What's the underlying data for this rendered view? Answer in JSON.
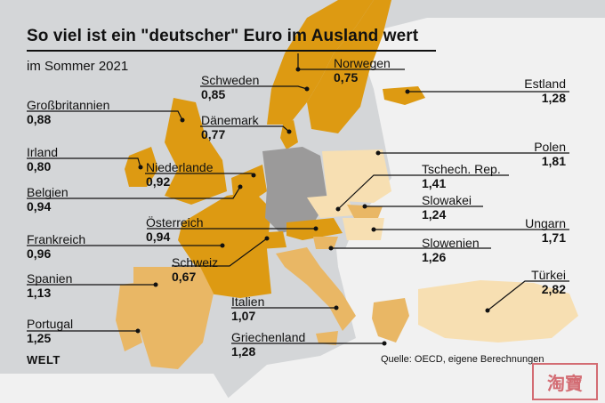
{
  "title": "So viel ist ein \"deutscher\" Euro im Ausland wert",
  "subtitle": "im Sommer 2021",
  "source": "Quelle: OECD, eigene Berechnungen",
  "logo": "WELT",
  "stamp": "淘寶",
  "colors": {
    "sea": "#d4d6d8",
    "other_land": "#f1f1f1",
    "germany": "#9b9a9a",
    "cheaper_dark": "#dd9a12",
    "cheaper_mid": "#e9b765",
    "more_light": "#f7dfb2"
  },
  "countries": [
    {
      "name": "Großbritannien",
      "value": "0,88"
    },
    {
      "name": "Irland",
      "value": "0,80"
    },
    {
      "name": "Belgien",
      "value": "0,94"
    },
    {
      "name": "Frankreich",
      "value": "0,96"
    },
    {
      "name": "Spanien",
      "value": "1,13"
    },
    {
      "name": "Portugal",
      "value": "1,25"
    },
    {
      "name": "Schweden",
      "value": "0,85"
    },
    {
      "name": "Norwegen",
      "value": "0,75"
    },
    {
      "name": "Dänemark",
      "value": "0,77"
    },
    {
      "name": "Niederlande",
      "value": "0,92"
    },
    {
      "name": "Österreich",
      "value": "0,94"
    },
    {
      "name": "Schweiz",
      "value": "0,67"
    },
    {
      "name": "Italien",
      "value": "1,07"
    },
    {
      "name": "Griechenland",
      "value": "1,28"
    },
    {
      "name": "Estland",
      "value": "1,28"
    },
    {
      "name": "Polen",
      "value": "1,81"
    },
    {
      "name": "Tschech. Rep.",
      "value": "1,41"
    },
    {
      "name": "Slowakei",
      "value": "1,24"
    },
    {
      "name": "Ungarn",
      "value": "1,71"
    },
    {
      "name": "Slowenien",
      "value": "1,26"
    },
    {
      "name": "Türkei",
      "value": "2,82"
    }
  ]
}
